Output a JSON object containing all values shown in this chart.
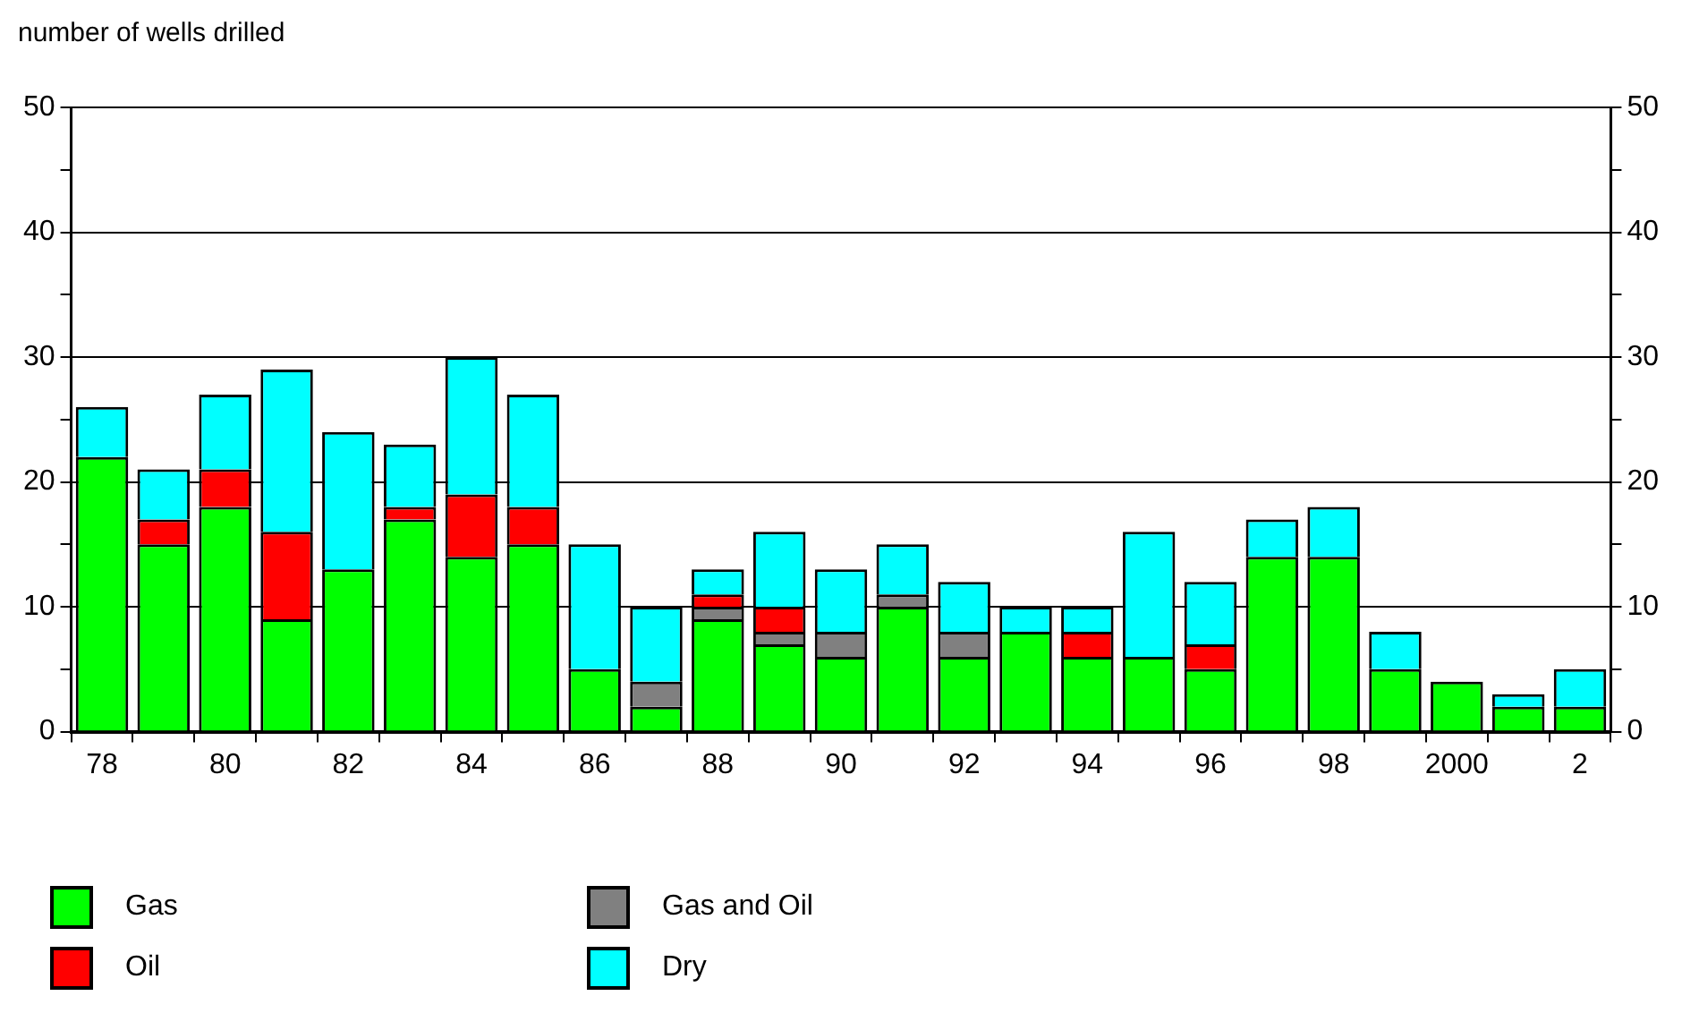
{
  "chart_data": {
    "type": "bar",
    "stacked": true,
    "ylabel": "number of wells drilled",
    "categories": [
      "78",
      null,
      "80",
      null,
      "82",
      null,
      "84",
      null,
      "86",
      null,
      "88",
      null,
      "90",
      null,
      "92",
      null,
      "94",
      null,
      "96",
      null,
      "98",
      null,
      "2000",
      null,
      "2"
    ],
    "series": [
      {
        "name": "Gas",
        "color": "#00ff00",
        "values": [
          22,
          15,
          18,
          9,
          13,
          17,
          14,
          15,
          5,
          2,
          9,
          7,
          6,
          10,
          6,
          8,
          6,
          6,
          5,
          14,
          14,
          5,
          4,
          2,
          2
        ]
      },
      {
        "name": "Gas and Oil",
        "color": "#808080",
        "values": [
          0,
          0,
          0,
          0,
          0,
          0,
          0,
          0,
          0,
          2,
          1,
          1,
          2,
          1,
          2,
          0,
          0,
          0,
          0,
          0,
          0,
          0,
          0,
          0,
          0
        ]
      },
      {
        "name": "Oil",
        "color": "#ff0000",
        "values": [
          0,
          2,
          3,
          7,
          0,
          1,
          5,
          3,
          0,
          0,
          1,
          2,
          0,
          0,
          0,
          0,
          2,
          0,
          2,
          0,
          0,
          0,
          0,
          0,
          0
        ]
      },
      {
        "name": "Dry",
        "color": "#00ffff",
        "values": [
          4,
          4,
          6,
          13,
          11,
          5,
          11,
          9,
          10,
          6,
          2,
          6,
          5,
          4,
          4,
          2,
          2,
          10,
          5,
          3,
          4,
          3,
          0,
          1,
          3
        ]
      }
    ],
    "ylim": [
      0,
      50
    ],
    "yticks": [
      0,
      {
        "value": 5,
        "label": null
      },
      10,
      {
        "value": 15,
        "label": null
      },
      20,
      {
        "value": 25,
        "label": null
      },
      30,
      {
        "value": 35,
        "label": null
      },
      40,
      {
        "value": 45,
        "label": null
      },
      50
    ],
    "y2lim": [
      0,
      50
    ],
    "y2ticks": [
      0,
      {
        "value": 5,
        "label": null
      },
      10,
      {
        "value": 15,
        "label": null
      },
      20,
      {
        "value": 25,
        "label": null
      },
      30,
      {
        "value": 35,
        "label": null
      },
      40,
      {
        "value": 45,
        "label": null
      },
      50
    ],
    "grid": "y",
    "legend": "bottom"
  }
}
